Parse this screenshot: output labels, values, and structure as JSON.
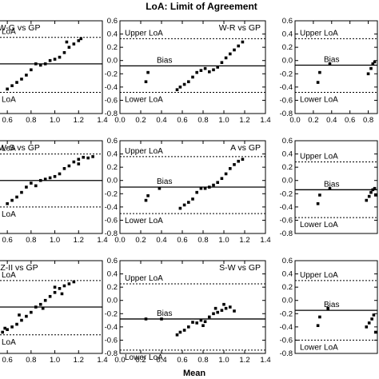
{
  "chart_data": {
    "title": "LoA: Limit of Agreement",
    "xlabel": "Mean",
    "annotations": {
      "upper": "Upper LoA",
      "bias": "Bias",
      "lower": "Lower LoA"
    },
    "panels": [
      {
        "type": "scatter",
        "title": "W-G vs GP",
        "title_side": "left",
        "xlim": [
          0.0,
          1.4
        ],
        "ylim": [
          -0.8,
          0.6
        ],
        "x_ticks": [
          "0.4",
          "0.6",
          "0.8",
          "1.0",
          "1.2",
          "1.4"
        ],
        "y_ticks": [],
        "bias": -0.05,
        "upper_loa": 0.35,
        "lower_loa": -0.48,
        "labels": {
          "upper": "LoA",
          "bias": "",
          "lower": "LoA"
        },
        "points": [
          [
            0.38,
            -0.05
          ],
          [
            0.6,
            -0.43
          ],
          [
            0.64,
            -0.38
          ],
          [
            0.68,
            -0.33
          ],
          [
            0.72,
            -0.28
          ],
          [
            0.76,
            -0.22
          ],
          [
            0.8,
            -0.14
          ],
          [
            0.84,
            -0.05
          ],
          [
            0.88,
            -0.07
          ],
          [
            0.92,
            -0.05
          ],
          [
            0.96,
            0.0
          ],
          [
            1.0,
            0.02
          ],
          [
            1.04,
            0.05
          ],
          [
            1.08,
            0.12
          ],
          [
            1.12,
            0.2
          ],
          [
            1.16,
            0.25
          ],
          [
            1.2,
            0.3
          ],
          [
            1.22,
            0.33
          ],
          [
            1.1,
            0.28
          ]
        ]
      },
      {
        "type": "scatter",
        "title": "W-R vs GP",
        "title_side": "right",
        "xlim": [
          0.0,
          1.4
        ],
        "ylim": [
          -0.8,
          0.6
        ],
        "x_ticks": [
          "0.0",
          "0.2",
          "0.4",
          "0.6",
          "0.8",
          "1.0",
          "1.2",
          "1.4"
        ],
        "y_ticks": [
          "0.6",
          "0.4",
          "0.2",
          "0.0",
          "-0.2",
          "-0.4",
          "-0.6",
          "-0.8"
        ],
        "bias": -0.08,
        "upper_loa": 0.33,
        "lower_loa": -0.48,
        "labels": {
          "upper": "Upper LoA",
          "bias": "Bias",
          "lower": "Lower LoA"
        },
        "points": [
          [
            0.25,
            -0.32
          ],
          [
            0.27,
            -0.18
          ],
          [
            0.55,
            -0.44
          ],
          [
            0.58,
            -0.4
          ],
          [
            0.62,
            -0.36
          ],
          [
            0.66,
            -0.32
          ],
          [
            0.7,
            -0.25
          ],
          [
            0.74,
            -0.18
          ],
          [
            0.78,
            -0.15
          ],
          [
            0.82,
            -0.12
          ],
          [
            0.86,
            -0.17
          ],
          [
            0.9,
            -0.14
          ],
          [
            0.94,
            -0.1
          ],
          [
            0.98,
            -0.03
          ],
          [
            1.02,
            0.04
          ],
          [
            1.06,
            0.1
          ],
          [
            1.1,
            0.16
          ],
          [
            1.14,
            0.22
          ],
          [
            1.18,
            0.28
          ]
        ]
      },
      {
        "type": "scatter",
        "title": "",
        "title_side": "right",
        "xlim": [
          0.0,
          0.9
        ],
        "ylim": [
          -0.8,
          0.6
        ],
        "x_ticks": [
          "0.0",
          "0.2",
          "0.4",
          "0.6",
          "0.8"
        ],
        "y_ticks": [
          "0.6",
          "0.4",
          "0.2",
          "0.0",
          "-0.2",
          "-0.4",
          "-0.6",
          "-0.8"
        ],
        "bias": -0.07,
        "upper_loa": 0.33,
        "lower_loa": -0.48,
        "labels": {
          "upper": "Upper LoA",
          "bias": "Bias",
          "lower": "Lower LoA"
        },
        "points": [
          [
            0.25,
            -0.33
          ],
          [
            0.27,
            -0.18
          ],
          [
            0.38,
            -0.05
          ],
          [
            0.8,
            -0.2
          ],
          [
            0.83,
            -0.12
          ],
          [
            0.85,
            -0.05
          ],
          [
            0.87,
            -0.02
          ]
        ]
      },
      {
        "type": "scatter",
        "title": "W-S vs GP",
        "title_side": "left",
        "xlim": [
          0.0,
          1.4
        ],
        "ylim": [
          -0.8,
          0.6
        ],
        "x_ticks": [
          "0.4",
          "0.6",
          "0.8",
          "1.0",
          "1.2",
          "1.4"
        ],
        "y_ticks": [],
        "bias": 0.0,
        "upper_loa": 0.4,
        "lower_loa": -0.4,
        "labels": {
          "upper": "LoA",
          "bias": "",
          "lower": "LoA"
        },
        "points": [
          [
            0.52,
            -0.25
          ],
          [
            0.6,
            -0.35
          ],
          [
            0.64,
            -0.3
          ],
          [
            0.68,
            -0.25
          ],
          [
            0.72,
            -0.18
          ],
          [
            0.76,
            -0.1
          ],
          [
            0.8,
            -0.04
          ],
          [
            0.84,
            -0.08
          ],
          [
            0.88,
            0.0
          ],
          [
            0.92,
            0.02
          ],
          [
            0.96,
            0.04
          ],
          [
            1.0,
            0.06
          ],
          [
            1.04,
            0.1
          ],
          [
            1.08,
            0.18
          ],
          [
            1.12,
            0.22
          ],
          [
            1.16,
            0.28
          ],
          [
            1.2,
            0.32
          ],
          [
            1.24,
            0.35
          ],
          [
            1.28,
            0.34
          ],
          [
            1.32,
            0.36
          ],
          [
            1.2,
            0.25
          ]
        ]
      },
      {
        "type": "scatter",
        "title": "A vs GP",
        "title_side": "right",
        "xlim": [
          0.0,
          1.4
        ],
        "ylim": [
          -0.8,
          0.6
        ],
        "x_ticks": [
          "0.0",
          "0.2",
          "0.4",
          "0.6",
          "0.8",
          "1.0",
          "1.2",
          "1.4"
        ],
        "y_ticks": [
          "0.6",
          "0.4",
          "0.2",
          "0.0",
          "-0.2",
          "-0.4",
          "-0.6",
          "-0.8"
        ],
        "bias": -0.1,
        "upper_loa": 0.36,
        "lower_loa": -0.5,
        "labels": {
          "upper": "Upper LoA",
          "bias": "Bias",
          "lower": "Lower LoA"
        },
        "points": [
          [
            0.25,
            -0.3
          ],
          [
            0.27,
            -0.23
          ],
          [
            0.38,
            -0.12
          ],
          [
            0.58,
            -0.42
          ],
          [
            0.62,
            -0.37
          ],
          [
            0.66,
            -0.33
          ],
          [
            0.7,
            -0.28
          ],
          [
            0.74,
            -0.18
          ],
          [
            0.78,
            -0.12
          ],
          [
            0.82,
            -0.12
          ],
          [
            0.86,
            -0.1
          ],
          [
            0.9,
            -0.07
          ],
          [
            0.94,
            -0.03
          ],
          [
            0.98,
            0.03
          ],
          [
            1.02,
            0.1
          ],
          [
            1.06,
            0.18
          ],
          [
            1.1,
            0.24
          ],
          [
            1.14,
            0.29
          ],
          [
            1.18,
            0.32
          ]
        ]
      },
      {
        "type": "scatter",
        "title": "",
        "title_side": "right",
        "xlim": [
          0.0,
          0.9
        ],
        "ylim": [
          -0.8,
          0.6
        ],
        "x_ticks": [],
        "y_ticks": [
          "0.6",
          "0.4",
          "0.2",
          "0.0",
          "-0.2",
          "-0.4",
          "-0.6",
          "-0.8"
        ],
        "bias": -0.14,
        "upper_loa": 0.28,
        "lower_loa": -0.56,
        "labels": {
          "upper": "Upper LoA",
          "bias": "Bias",
          "lower": "Lower LoA"
        },
        "points": [
          [
            0.25,
            -0.35
          ],
          [
            0.27,
            -0.22
          ],
          [
            0.38,
            -0.12
          ],
          [
            0.78,
            -0.3
          ],
          [
            0.81,
            -0.24
          ],
          [
            0.83,
            -0.18
          ],
          [
            0.85,
            -0.14
          ],
          [
            0.87,
            -0.12
          ],
          [
            0.88,
            -0.22
          ]
        ]
      },
      {
        "type": "scatter",
        "title": "Z-II vs GP",
        "title_side": "left",
        "xlim": [
          0.0,
          1.4
        ],
        "ylim": [
          -0.8,
          0.6
        ],
        "x_ticks": [
          "0.4",
          "0.6",
          "0.8",
          "1.0",
          "1.2",
          "1.4"
        ],
        "y_ticks": [],
        "bias": -0.1,
        "upper_loa": 0.3,
        "lower_loa": -0.52,
        "labels": {
          "upper": "LoA",
          "bias": "",
          "lower": "LoA"
        },
        "points": [
          [
            0.56,
            -0.48
          ],
          [
            0.6,
            -0.44
          ],
          [
            0.64,
            -0.4
          ],
          [
            0.68,
            -0.36
          ],
          [
            0.72,
            -0.3
          ],
          [
            0.76,
            -0.24
          ],
          [
            0.8,
            -0.18
          ],
          [
            0.84,
            -0.1
          ],
          [
            0.88,
            -0.06
          ],
          [
            0.92,
            0.0
          ],
          [
            0.96,
            0.06
          ],
          [
            1.0,
            0.12
          ],
          [
            1.04,
            0.18
          ],
          [
            1.08,
            0.22
          ],
          [
            1.12,
            0.25
          ],
          [
            1.16,
            0.28
          ],
          [
            1.06,
            0.1
          ],
          [
            0.7,
            -0.22
          ],
          [
            0.9,
            -0.12
          ],
          [
            1.0,
            0.2
          ],
          [
            0.58,
            -0.42
          ]
        ]
      },
      {
        "type": "scatter",
        "title": "S-W vs GP",
        "title_side": "right",
        "xlim": [
          0.0,
          1.4
        ],
        "ylim": [
          -0.8,
          0.6
        ],
        "x_ticks": [
          "0.0",
          "0.2",
          "0.4",
          "0.6",
          "0.8",
          "1.0",
          "1.2",
          "1.4"
        ],
        "y_ticks": [
          "0.6",
          "0.4",
          "0.2",
          "0.0",
          "-0.2",
          "-0.4",
          "-0.6",
          "-0.8"
        ],
        "bias": -0.28,
        "upper_loa": 0.25,
        "lower_loa": -0.75,
        "labels": {
          "upper": "Upper LoA",
          "bias": "Bias",
          "lower": "Lower LoA"
        },
        "points": [
          [
            0.25,
            -0.28
          ],
          [
            0.4,
            -0.28
          ],
          [
            0.55,
            -0.52
          ],
          [
            0.58,
            -0.48
          ],
          [
            0.62,
            -0.45
          ],
          [
            0.66,
            -0.4
          ],
          [
            0.7,
            -0.33
          ],
          [
            0.74,
            -0.34
          ],
          [
            0.78,
            -0.3
          ],
          [
            0.82,
            -0.32
          ],
          [
            0.86,
            -0.25
          ],
          [
            0.9,
            -0.2
          ],
          [
            0.94,
            -0.18
          ],
          [
            0.98,
            -0.15
          ],
          [
            1.02,
            -0.12
          ],
          [
            1.06,
            -0.1
          ],
          [
            1.1,
            -0.16
          ],
          [
            0.8,
            -0.38
          ],
          [
            0.92,
            -0.12
          ],
          [
            1.0,
            -0.06
          ]
        ]
      },
      {
        "type": "scatter",
        "title": "",
        "title_side": "right",
        "xlim": [
          0.0,
          0.9
        ],
        "ylim": [
          -0.8,
          0.6
        ],
        "x_ticks": [],
        "y_ticks": [
          "0.6",
          "0.4",
          "0.2",
          "0.0",
          "-0.2",
          "-0.4",
          "-0.6",
          "-0.8"
        ],
        "bias": -0.15,
        "upper_loa": 0.3,
        "lower_loa": -0.6,
        "labels": {
          "upper": "Upper LoA",
          "bias": "Bias",
          "lower": "Lower LoA"
        },
        "points": [
          [
            0.25,
            -0.38
          ],
          [
            0.27,
            -0.25
          ],
          [
            0.36,
            -0.12
          ],
          [
            0.78,
            -0.4
          ],
          [
            0.81,
            -0.34
          ],
          [
            0.84,
            -0.28
          ],
          [
            0.86,
            -0.22
          ],
          [
            0.88,
            -0.48
          ]
        ]
      }
    ]
  }
}
